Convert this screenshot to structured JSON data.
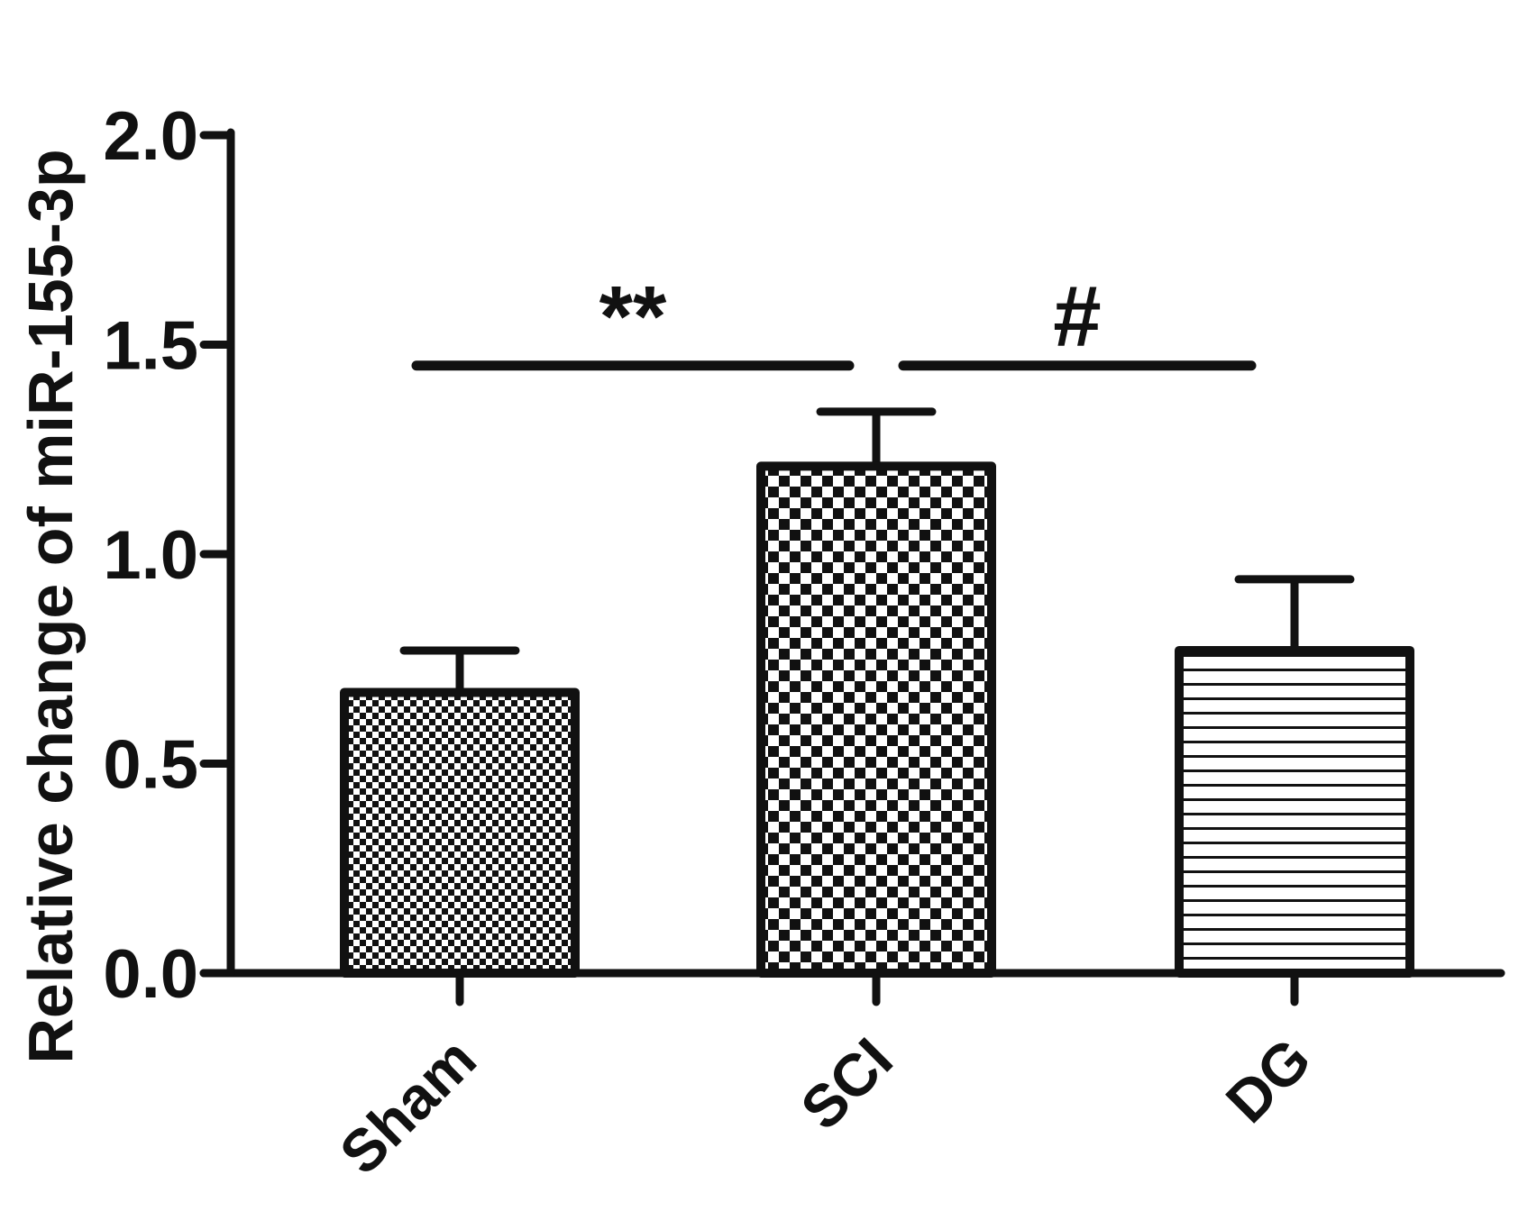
{
  "chart_data": {
    "type": "bar",
    "title": "",
    "xlabel": "",
    "ylabel": "Relative change of miR-155-3p",
    "ylim": [
      0,
      2.0
    ],
    "yticks": [
      "0.0",
      "0.5",
      "1.0",
      "1.5",
      "2.0"
    ],
    "categories": [
      "Sham",
      "SCI",
      "DG"
    ],
    "values": [
      0.67,
      1.21,
      0.77
    ],
    "errors": [
      0.1,
      0.13,
      0.17
    ],
    "patterns": [
      "fine-checker",
      "coarse-checker",
      "horizontal-lines"
    ],
    "grid": false,
    "significance": [
      {
        "label": "**",
        "from": "Sham",
        "to": "SCI",
        "y": 1.45
      },
      {
        "label": "#",
        "from": "SCI",
        "to": "DG",
        "y": 1.45
      }
    ]
  },
  "colors": {
    "ink": "#111111",
    "background": "#ffffff"
  }
}
